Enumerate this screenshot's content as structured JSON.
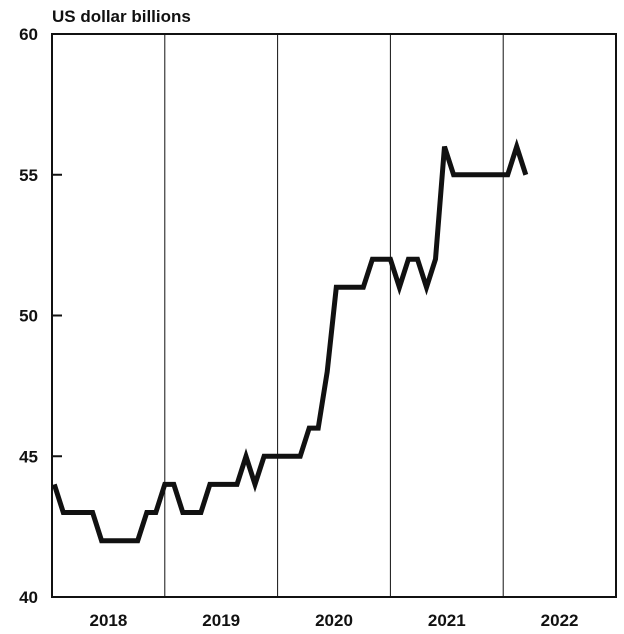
{
  "chart_data": {
    "type": "line",
    "title": "",
    "ylabel": "US dollar billions",
    "xlabel": "",
    "ylim": [
      40,
      60
    ],
    "yticks": [
      "40",
      "45",
      "50",
      "55",
      "60"
    ],
    "ytick_values": [
      40,
      45,
      50,
      55,
      60
    ],
    "xlim": [
      2017.5,
      2022.5
    ],
    "year_labels": [
      "2018",
      "2019",
      "2020",
      "2021",
      "2022"
    ],
    "year_centers": [
      2018,
      2019,
      2020,
      2021,
      2022
    ],
    "year_dividers": [
      2018.5,
      2019.5,
      2020.5,
      2021.5
    ],
    "grid": false,
    "legend": "none",
    "series": [
      {
        "color": "#111111",
        "x": [
          2017.52,
          2017.6,
          2017.68,
          2017.76,
          2017.86,
          2017.94,
          2018.02,
          2018.1,
          2018.18,
          2018.26,
          2018.34,
          2018.42,
          2018.5,
          2018.58,
          2018.66,
          2018.74,
          2018.82,
          2018.9,
          2018.98,
          2019.06,
          2019.14,
          2019.22,
          2019.3,
          2019.38,
          2019.46,
          2019.54,
          2019.62,
          2019.7,
          2019.78,
          2019.86,
          2019.94,
          2020.02,
          2020.1,
          2020.18,
          2020.26,
          2020.34,
          2020.42,
          2020.5,
          2020.58,
          2020.66,
          2020.74,
          2020.82,
          2020.9,
          2020.98,
          2021.06,
          2021.14,
          2021.22,
          2021.3,
          2021.38,
          2021.46,
          2021.54,
          2021.62,
          2021.7
        ],
        "values": [
          44,
          43,
          43,
          43,
          43,
          42,
          42,
          42,
          42,
          42,
          43,
          43,
          44,
          44,
          43,
          43,
          43,
          44,
          44,
          44,
          44,
          45,
          44,
          45,
          45,
          45,
          45,
          45,
          46,
          46,
          48,
          51,
          51,
          51,
          51,
          52,
          52,
          52,
          51,
          52,
          52,
          51,
          52,
          56,
          55,
          55,
          55,
          55,
          55,
          55,
          55,
          56,
          55
        ]
      }
    ]
  }
}
